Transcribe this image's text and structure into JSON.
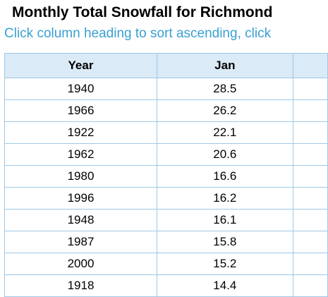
{
  "page": {
    "title": "Monthly Total Snowfall for Richmond",
    "instructions": "Click column heading to sort ascending, click"
  },
  "table": {
    "headers": [
      "Year",
      "Jan",
      ""
    ],
    "rows": [
      [
        "1940",
        "28.5"
      ],
      [
        "1966",
        "26.2"
      ],
      [
        "1922",
        "22.1"
      ],
      [
        "1962",
        "20.6"
      ],
      [
        "1980",
        "16.6"
      ],
      [
        "1996",
        "16.2"
      ],
      [
        "1948",
        "16.1"
      ],
      [
        "1987",
        "15.8"
      ],
      [
        "2000",
        "15.2"
      ],
      [
        "1918",
        "14.4"
      ]
    ]
  },
  "colors": {
    "header_bg": "#dbeaf7",
    "border": "#9fc8e6",
    "instructions_text": "#3aa0d2"
  }
}
